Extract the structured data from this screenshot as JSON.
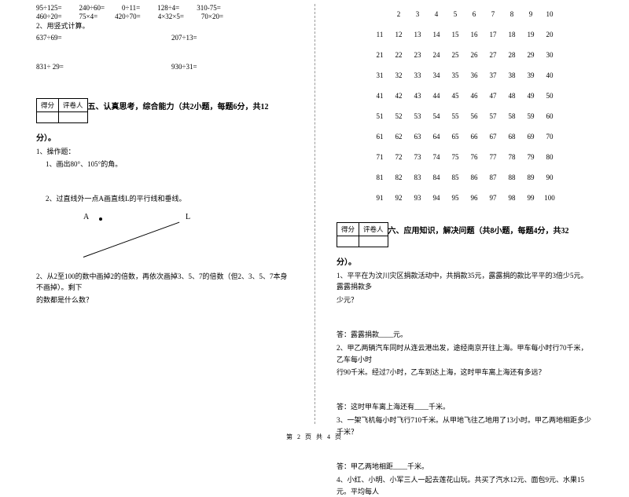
{
  "footer": "第 2 页 共 4 页",
  "left": {
    "eqRow1": [
      "95÷125=",
      "240÷60=",
      "0÷11=",
      "128÷4=",
      "310-75="
    ],
    "eqRow2": [
      "460÷20=",
      "75×4=",
      "",
      "420÷70=",
      "4×32×5=",
      "70×20="
    ],
    "calc_label": "2、用竖式计算。",
    "calc_r1a": "637÷69=",
    "calc_r1b": "207÷13=",
    "calc_r2a": "831÷ 29=",
    "calc_r2b": "930÷31=",
    "score_a": "得分",
    "score_b": "评卷人",
    "sec5_title": "五、认真思考，综合能力（共2小题，每题6分，共12",
    "sec5_tail": "分）。",
    "q1": "1、操作题：",
    "q1_1": "1、画出80°、105°的角。",
    "q1_2": "2、过直线外一点A画直线L的平行线和垂线。",
    "pt_A": "A",
    "pt_L": "L",
    "q2a": "2、从2至100的数中画掉2的倍数，再依次画掉3、5、7的倍数（但2、3、5、7本身不画掉）。剩下",
    "q2b": "的数都是什么数？"
  },
  "right": {
    "grid": [
      [
        "",
        "2",
        "3",
        "4",
        "5",
        "6",
        "7",
        "8",
        "9",
        "10"
      ],
      [
        "11",
        "12",
        "13",
        "14",
        "15",
        "16",
        "17",
        "18",
        "19",
        "20"
      ],
      [
        "21",
        "22",
        "23",
        "24",
        "25",
        "26",
        "27",
        "28",
        "29",
        "30"
      ],
      [
        "31",
        "32",
        "33",
        "34",
        "35",
        "36",
        "37",
        "38",
        "39",
        "40"
      ],
      [
        "41",
        "42",
        "43",
        "44",
        "45",
        "46",
        "47",
        "48",
        "49",
        "50"
      ],
      [
        "51",
        "52",
        "53",
        "54",
        "55",
        "56",
        "57",
        "58",
        "59",
        "60"
      ],
      [
        "61",
        "62",
        "63",
        "64",
        "65",
        "66",
        "67",
        "68",
        "69",
        "70"
      ],
      [
        "71",
        "72",
        "73",
        "74",
        "75",
        "76",
        "77",
        "78",
        "79",
        "80"
      ],
      [
        "81",
        "82",
        "83",
        "84",
        "85",
        "86",
        "87",
        "88",
        "89",
        "90"
      ],
      [
        "91",
        "92",
        "93",
        "94",
        "95",
        "96",
        "97",
        "98",
        "99",
        "100"
      ]
    ],
    "score_a": "得分",
    "score_b": "评卷人",
    "sec6_title": "六、应用知识，解决问题（共8小题，每题4分，共32",
    "sec6_tail": "分）。",
    "q1a": "1、平平在为汶川灾区捐款活动中，共捐款35元，露露捐的款比平平的3倍少5元。露露捐款多",
    "q1b": "少元？",
    "a1": "答：露露捐款____元。",
    "q2a": "2、甲乙两辆汽车同时从连云港出发，途经南京开往上海。甲车每小时行70千米，乙车每小时",
    "q2b": "行90千米。经过7小时，乙车到达上海，这时甲车离上海还有多远？",
    "a2": "答：这时甲车离上海还有____千米。",
    "q3": "3、一架飞机每小时飞行710千米。从甲地飞往乙地用了13小时。甲乙两地相距多少千米？",
    "a3": "答：甲乙两地相距____千米。",
    "q4": "4、小红、小明、小军三人一起去莲花山玩。共买了汽水12元、面包9元、水果15元。平均每人"
  }
}
